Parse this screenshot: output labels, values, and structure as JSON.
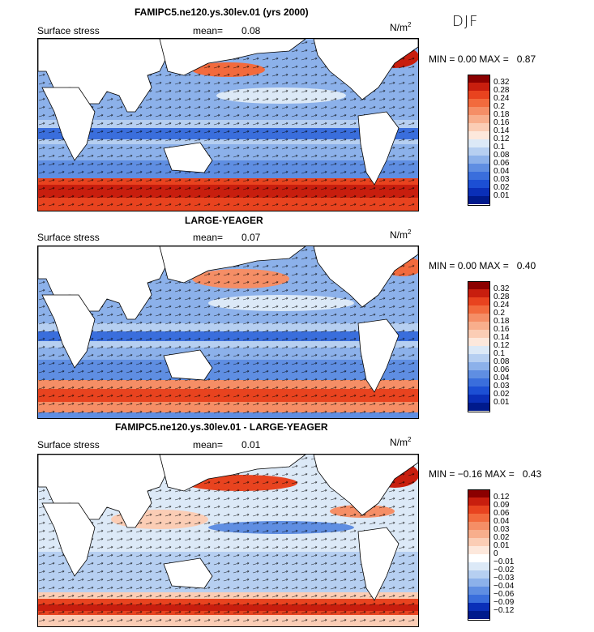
{
  "season": "DJF",
  "panels": [
    {
      "title": "FAMIPC5.ne120.ys.30lev.01 (yrs 2000)",
      "variable": "Surface stress",
      "mean_label": "mean=",
      "mean_value": "0.08",
      "units": "N/m",
      "units_exp": "2",
      "min_label": "MIN =",
      "min_value": "0.00",
      "max_label": "MAX =",
      "max_value": "0.87",
      "levels": [
        "0.32",
        "0.28",
        "0.24",
        "0.2",
        "0.18",
        "0.16",
        "0.14",
        "0.12",
        "0.1",
        "0.08",
        "0.06",
        "0.04",
        "0.03",
        "0.02",
        "0.01"
      ],
      "colors": [
        "#8b0000",
        "#c81e0e",
        "#e8431f",
        "#f26a3d",
        "#f58e66",
        "#f8ae8c",
        "#fbcdb5",
        "#fde8dc",
        "#dce9f7",
        "#b6cff1",
        "#8cb1ea",
        "#5f8ee2",
        "#3a6edc",
        "#1c4fd4",
        "#0a2fb8",
        "#001a8c"
      ]
    },
    {
      "title": "LARGE-YEAGER",
      "variable": "Surface stress",
      "mean_label": "mean=",
      "mean_value": "0.07",
      "units": "N/m",
      "units_exp": "2",
      "min_label": "MIN =",
      "min_value": "0.00",
      "max_label": "MAX =",
      "max_value": "0.40",
      "levels": [
        "0.32",
        "0.28",
        "0.24",
        "0.2",
        "0.18",
        "0.16",
        "0.14",
        "0.12",
        "0.1",
        "0.08",
        "0.06",
        "0.04",
        "0.03",
        "0.02",
        "0.01"
      ],
      "colors": [
        "#8b0000",
        "#c81e0e",
        "#e8431f",
        "#f26a3d",
        "#f58e66",
        "#f8ae8c",
        "#fbcdb5",
        "#fde8dc",
        "#dce9f7",
        "#b6cff1",
        "#8cb1ea",
        "#5f8ee2",
        "#3a6edc",
        "#1c4fd4",
        "#0a2fb8",
        "#001a8c"
      ]
    },
    {
      "title": "FAMIPC5.ne120.ys.30lev.01 - LARGE-YEAGER",
      "variable": "Surface stress",
      "mean_label": "mean=",
      "mean_value": "0.01",
      "units": "N/m",
      "units_exp": "2",
      "min_label": "MIN =",
      "min_value": "−0.16",
      "max_label": "MAX =",
      "max_value": "0.43",
      "levels": [
        "0.12",
        "0.09",
        "0.06",
        "0.04",
        "0.03",
        "0.02",
        "0.01",
        "0",
        "−0.01",
        "−0.02",
        "−0.03",
        "−0.04",
        "−0.06",
        "−0.09",
        "−0.12"
      ],
      "colors": [
        "#8b0000",
        "#c81e0e",
        "#e8431f",
        "#f26a3d",
        "#f58e66",
        "#f8ae8c",
        "#fbcdb5",
        "#fde8dc",
        "#ffffff",
        "#dce9f7",
        "#b6cff1",
        "#8cb1ea",
        "#5f8ee2",
        "#3a6edc",
        "#0a2fb8",
        "#001a8c"
      ]
    }
  ]
}
